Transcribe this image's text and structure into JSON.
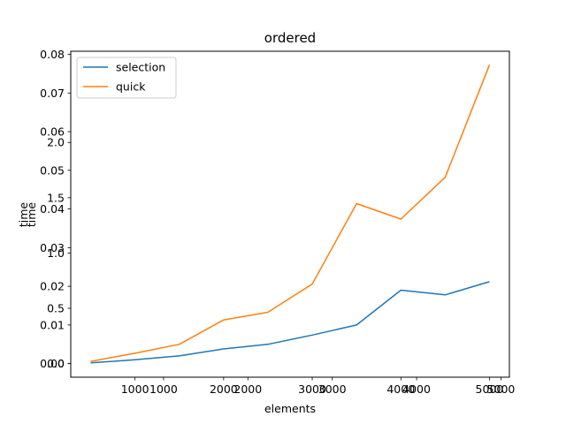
{
  "chart_data": {
    "type": "line",
    "title": "ordered",
    "xlabel": "elements",
    "ylabel": "time",
    "legend": {
      "placement": "upper-left",
      "entries": [
        "selection",
        "quick"
      ]
    },
    "grid": false,
    "note": "Two overlapping axes sets are drawn (matplotlib twin-axis artifact); both are reproduced.",
    "x": [
      500,
      1000,
      1500,
      2000,
      2500,
      3000,
      3500,
      4000,
      4500,
      5000
    ],
    "series": [
      {
        "name": "selection",
        "color": "#1f77b4",
        "values": [
          0.0002,
          0.001,
          0.002,
          0.0038,
          0.005,
          0.0074,
          0.01,
          0.019,
          0.0178,
          0.0212
        ]
      },
      {
        "name": "quick",
        "color": "#ff7f0e",
        "values": [
          0.0006,
          0.0027,
          0.005,
          0.0113,
          0.0133,
          0.0206,
          0.0414,
          0.0374,
          0.0482,
          0.0773
        ]
      }
    ],
    "axes_primary": {
      "xlim": [
        275,
        5225
      ],
      "ylim": [
        -0.0035,
        0.0808
      ],
      "xticks": [
        1000,
        2000,
        3000,
        4000,
        5000
      ],
      "xtick_labels": [
        "1000",
        "2000",
        "3000",
        "4000",
        "5000"
      ],
      "yticks": [
        0.0,
        0.01,
        0.02,
        0.03,
        0.04,
        0.05,
        0.06,
        0.07,
        0.08
      ],
      "ytick_labels": [
        "0.00",
        "0.01",
        "0.02",
        "0.03",
        "0.04",
        "0.05",
        "0.06",
        "0.07",
        "0.08"
      ]
    },
    "axes_secondary": {
      "xlim": [
        -100,
        5100
      ],
      "ylim": [
        -0.1235,
        2.825
      ],
      "xticks": [
        1000,
        2000,
        3000,
        4000,
        5000
      ],
      "xtick_labels": [
        "1000",
        "2000",
        "3000",
        "4000",
        "5000"
      ],
      "yticks": [
        0.0,
        0.5,
        1.0,
        1.5,
        2.0
      ],
      "ytick_labels": [
        "0.0",
        "0.5",
        "1.0",
        "1.5",
        "2.0"
      ]
    }
  }
}
